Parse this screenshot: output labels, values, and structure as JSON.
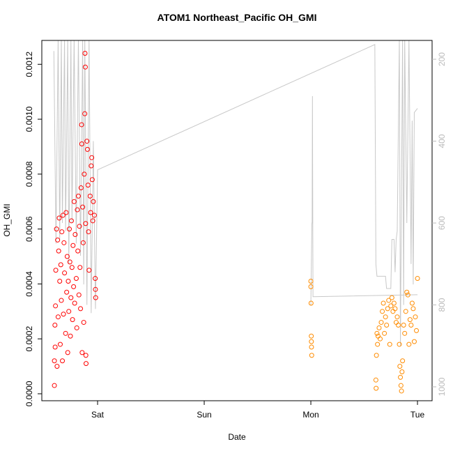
{
  "chart_data": {
    "type": "scatter",
    "title": "ATOM1 Northeast_Pacific OH_GMI",
    "x_label": "Date",
    "y_label": "OH_GMI",
    "xlim": [
      -0.523,
      3.137
    ],
    "xticks": [
      {
        "value": 0,
        "label": "Sat"
      },
      {
        "value": 1,
        "label": "Sun"
      },
      {
        "value": 2,
        "label": "Mon"
      },
      {
        "value": 3,
        "label": "Tue"
      }
    ],
    "ylim": [
      -2.54e-05,
      0.001287
    ],
    "yticks": [
      {
        "value": 0,
        "label": "0.0000"
      },
      {
        "value": 0.0002,
        "label": "0.0002"
      },
      {
        "value": 0.0004,
        "label": "0.0004"
      },
      {
        "value": 0.0006,
        "label": "0.0006"
      },
      {
        "value": 0.0008,
        "label": "0.0008"
      },
      {
        "value": 0.001,
        "label": "0.0010"
      },
      {
        "value": 0.0012,
        "label": "0.0012"
      }
    ],
    "y2lim": [
      1034,
      154
    ],
    "y2ticks": [
      200,
      400,
      600,
      800,
      1000
    ],
    "y2_color": "#bbbbbb",
    "series": [
      {
        "color": "#ff0000",
        "x": [
          -0.405,
          -0.405,
          -0.4,
          -0.398,
          -0.395,
          -0.392,
          -0.385,
          -0.38,
          -0.375,
          -0.37,
          -0.365,
          -0.36,
          -0.355,
          -0.35,
          -0.345,
          -0.34,
          -0.335,
          -0.33,
          -0.325,
          -0.32,
          -0.315,
          -0.31,
          -0.3,
          -0.295,
          -0.29,
          -0.285,
          -0.28,
          -0.275,
          -0.27,
          -0.265,
          -0.26,
          -0.255,
          -0.25,
          -0.245,
          -0.24,
          -0.235,
          -0.23,
          -0.225,
          -0.22,
          -0.215,
          -0.21,
          -0.2,
          -0.195,
          -0.19,
          -0.185,
          -0.18,
          -0.175,
          -0.17,
          -0.165,
          -0.16,
          -0.155,
          -0.15,
          -0.148,
          -0.145,
          -0.14,
          -0.135,
          -0.13,
          -0.125,
          -0.12,
          -0.118,
          -0.115,
          -0.112,
          -0.11,
          -0.108,
          -0.1,
          -0.095,
          -0.09,
          -0.085,
          -0.08,
          -0.07,
          -0.065,
          -0.06,
          -0.055,
          -0.05,
          -0.045,
          -0.04,
          -0.03,
          -0.022,
          -0.02,
          -0.018
        ],
        "values": [
          3e-05,
          0.00012,
          0.00025,
          0.00017,
          0.00032,
          0.00045,
          0.0006,
          0.0001,
          0.00056,
          0.00028,
          0.00052,
          0.00064,
          0.00041,
          0.00018,
          0.00047,
          0.00034,
          0.00059,
          0.00012,
          0.00065,
          0.00029,
          0.00055,
          0.00044,
          0.00022,
          0.00066,
          0.00037,
          0.0005,
          0.00015,
          0.00041,
          0.0003,
          0.0006,
          0.00048,
          0.00021,
          0.00035,
          0.00063,
          0.00046,
          0.00027,
          0.00054,
          0.00039,
          0.0007,
          0.00033,
          0.00058,
          0.00042,
          0.00024,
          0.00067,
          0.00052,
          0.00072,
          0.00036,
          0.00061,
          0.00046,
          0.00031,
          0.00075,
          0.00098,
          0.00091,
          0.00015,
          0.00068,
          0.00055,
          0.00026,
          0.0008,
          0.00102,
          0.00124,
          0.00119,
          0.00062,
          0.00014,
          0.00011,
          0.00092,
          0.00089,
          0.00076,
          0.00059,
          0.00045,
          0.00072,
          0.00066,
          0.00083,
          0.00086,
          0.00078,
          0.00063,
          0.0007,
          0.00065,
          0.00042,
          0.00038,
          0.00035
        ]
      },
      {
        "color": "#ff8c00",
        "x": [
          2.0,
          2.0,
          2.002,
          2.004,
          2.005,
          2.006,
          2.008,
          2.61,
          2.612,
          2.615,
          2.62,
          2.625,
          2.63,
          2.64,
          2.65,
          2.66,
          2.67,
          2.68,
          2.69,
          2.7,
          2.71,
          2.72,
          2.73,
          2.74,
          2.75,
          2.76,
          2.77,
          2.78,
          2.79,
          2.8,
          2.81,
          2.82,
          2.83,
          2.835,
          2.84,
          2.845,
          2.85,
          2.855,
          2.86,
          2.87,
          2.88,
          2.89,
          2.9,
          2.91,
          2.92,
          2.93,
          2.94,
          2.95,
          2.96,
          2.97,
          2.98,
          2.99,
          3.0
        ],
        "values": [
          0.00041,
          0.00039,
          0.00033,
          0.00021,
          0.00019,
          0.00017,
          0.00014,
          5e-05,
          2e-05,
          0.00014,
          0.00022,
          0.00018,
          0.00021,
          0.00024,
          0.0002,
          0.00026,
          0.0003,
          0.00033,
          0.00022,
          0.00028,
          0.00025,
          0.00031,
          0.00034,
          0.00018,
          0.00032,
          0.00035,
          0.0003,
          0.00033,
          0.00031,
          0.00026,
          0.00028,
          0.00025,
          0.00018,
          0.0001,
          6e-05,
          3e-05,
          1e-05,
          8e-05,
          0.00012,
          0.00025,
          0.00022,
          0.0003,
          0.00037,
          0.00036,
          0.00018,
          0.00027,
          0.00025,
          0.00033,
          0.00031,
          0.00019,
          0.00028,
          0.00023,
          0.00042
        ]
      },
      {
        "type": "line",
        "axis": "y2",
        "color": "#c8c8c8",
        "x": [
          -0.41,
          -0.39,
          -0.37,
          -0.355,
          -0.34,
          -0.33,
          -0.31,
          -0.3,
          -0.28,
          -0.27,
          -0.25,
          -0.24,
          -0.22,
          -0.2,
          -0.18,
          -0.16,
          -0.14,
          -0.13,
          -0.12,
          -0.1,
          -0.08,
          -0.06,
          -0.04,
          -0.02,
          0.0,
          2.6,
          2.61,
          2.62,
          2.7,
          2.71,
          2.75,
          2.76,
          2.78,
          2.79,
          2.8,
          2.81,
          2.83,
          2.84,
          2.86,
          2.87,
          2.88,
          2.9,
          2.92,
          2.94,
          2.95,
          2.96,
          2.97,
          3.0,
          null,
          2.0,
          2.01,
          2.012,
          2.015,
          2.02,
          3.0
        ],
        "values": [
          180,
          650,
          150,
          640,
          150,
          600,
          150,
          620,
          150,
          700,
          150,
          600,
          150,
          650,
          150,
          680,
          150,
          750,
          150,
          800,
          150,
          820,
          400,
          810,
          470,
          164,
          700,
          730,
          730,
          760,
          760,
          640,
          640,
          720,
          640,
          620,
          150,
          900,
          150,
          800,
          150,
          600,
          150,
          700,
          350,
          750,
          330,
          320,
          null,
          800,
          600,
          600,
          290,
          780,
          775
        ]
      }
    ]
  }
}
